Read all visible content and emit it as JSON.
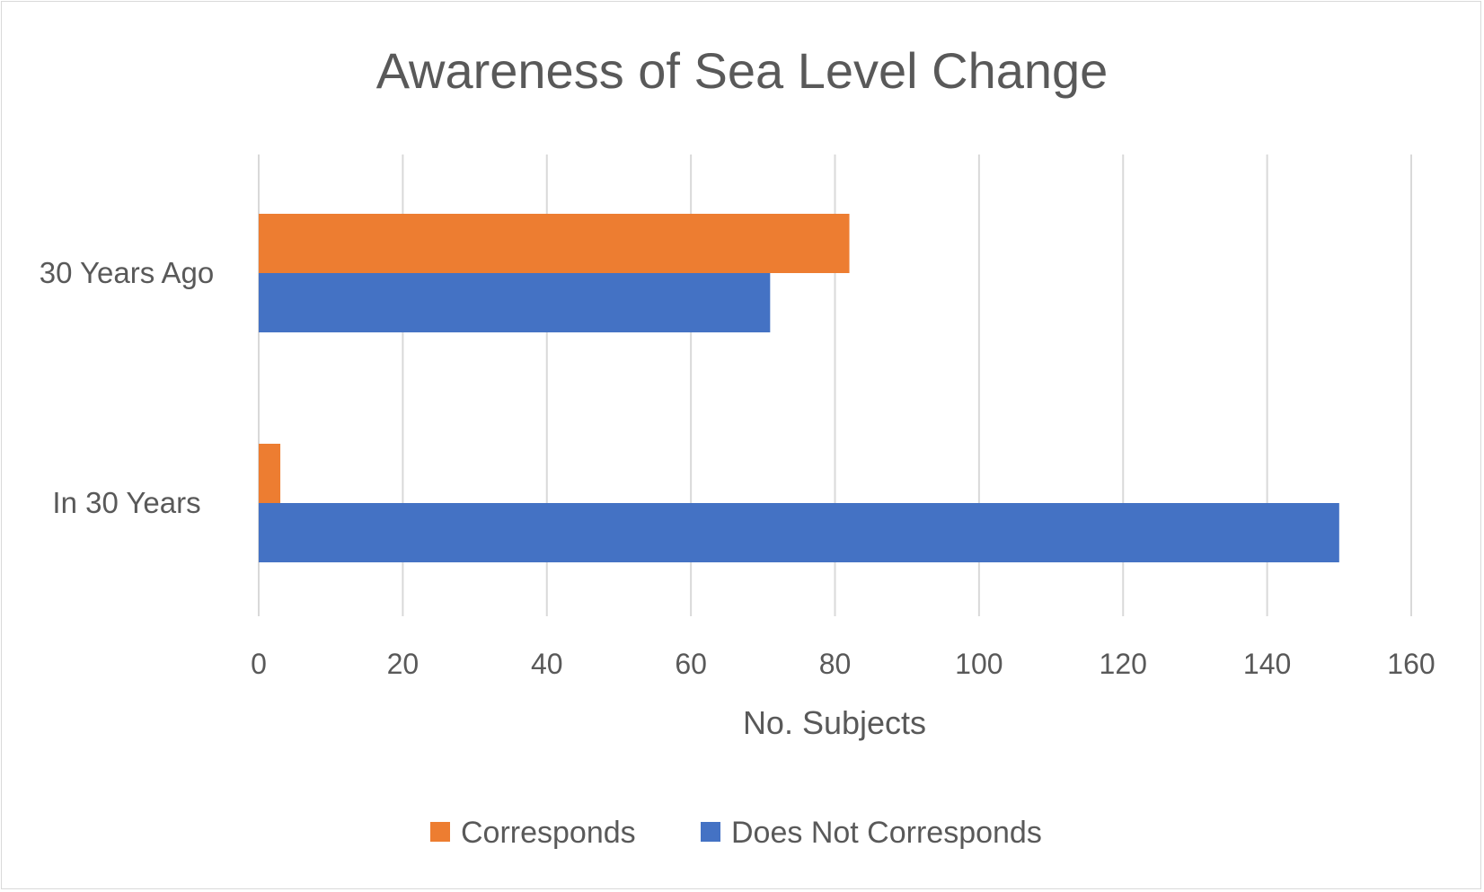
{
  "chart_data": {
    "type": "bar",
    "orientation": "horizontal",
    "title": "Awareness of Sea Level Change",
    "xlabel": "No. Subjects",
    "ylabel": "",
    "xlim": [
      0,
      160
    ],
    "x_ticks": [
      "0",
      "20",
      "40",
      "60",
      "80",
      "100",
      "120",
      "140",
      "160"
    ],
    "categories": [
      "30 Years Ago",
      "In 30 Years"
    ],
    "series": [
      {
        "name": "Corresponds",
        "color": "#ED7D31",
        "values": [
          82,
          3
        ]
      },
      {
        "name": "Does Not Corresponds",
        "color": "#4472C4",
        "values": [
          71,
          150
        ]
      }
    ],
    "grid": "vertical",
    "legend_position": "bottom"
  }
}
